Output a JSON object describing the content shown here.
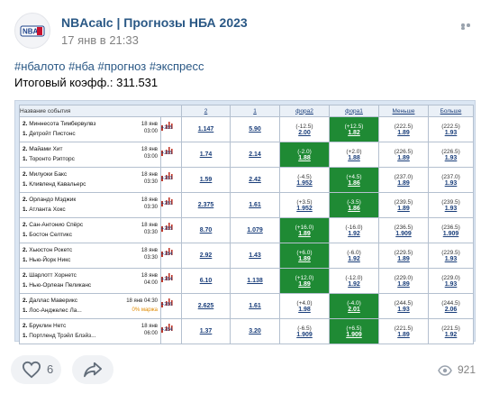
{
  "post": {
    "author": "NBAcalc | Прогнозы НБА 2023",
    "date": "17 янв в 21:33",
    "tags": "#нбалото #нба #прогноз #экспресс",
    "total": "Итоговый коэфф.: 311.531",
    "logo_text": "NBA",
    "likes": "6",
    "views": "921"
  },
  "table": {
    "headers": [
      "Название события",
      "2",
      "1",
      "фора2",
      "фора1",
      "Меньше",
      "Больше"
    ],
    "rows": [
      {
        "team1": "Миннесота Тимбервулвз",
        "team2": "Детройт Пистонс",
        "n1": "2.",
        "n2": "1.",
        "date": "18 янв",
        "time": "03:00",
        "more": "+285",
        "marja": "",
        "v2": "1.147",
        "v1": "5.90",
        "f2l": "(-12.5)",
        "f2o": "2.00",
        "f1l": "(+12.5)",
        "f1o": "1.82",
        "ml": "(222.5)",
        "mo": "1.89",
        "bl": "(222.5)",
        "bo": "1.93",
        "hl": "f1"
      },
      {
        "team1": "Майами Хит",
        "team2": "Торонто Рэпторс",
        "n1": "2.",
        "n2": "1.",
        "date": "18 янв",
        "time": "03:00",
        "more": "+285",
        "marja": "",
        "v2": "1.74",
        "v1": "2.14",
        "f2l": "(-2.0)",
        "f2o": "1.88",
        "f1l": "(+2.0)",
        "f1o": "1.88",
        "ml": "(226.5)",
        "mo": "1.89",
        "bl": "(226.5)",
        "bo": "1.93",
        "hl": "f2"
      },
      {
        "team1": "Милуоки Бакс",
        "team2": "Кливленд Кавальерс",
        "n1": "2.",
        "n2": "1.",
        "date": "18 янв",
        "time": "03:30",
        "more": "+283",
        "marja": "",
        "v2": "1.59",
        "v1": "2.42",
        "f2l": "(-4.5)",
        "f2o": "1.952",
        "f1l": "(+4.5)",
        "f1o": "1.86",
        "ml": "(237.0)",
        "mo": "1.89",
        "bl": "(237.0)",
        "bo": "1.93",
        "hl": "f1"
      },
      {
        "team1": "Орландо Мэджик",
        "team2": "Атланта Хокс",
        "n1": "2.",
        "n2": "1.",
        "date": "18 янв",
        "time": "03:30",
        "more": "+281",
        "marja": "",
        "v2": "2.375",
        "v1": "1.61",
        "f2l": "(+3.5)",
        "f2o": "1.952",
        "f1l": "(-3.5)",
        "f1o": "1.86",
        "ml": "(239.5)",
        "mo": "1.89",
        "bl": "(239.5)",
        "bo": "1.93",
        "hl": "f1"
      },
      {
        "team1": "Сан-Антонио Спёрс",
        "team2": "Бостон Селтикс",
        "n1": "2.",
        "n2": "1.",
        "date": "18 янв",
        "time": "03:30",
        "more": "+285",
        "marja": "",
        "v2": "8.70",
        "v1": "1.079",
        "f2l": "(+16.0)",
        "f2o": "1.89",
        "f1l": "(-16.0)",
        "f1o": "1.92",
        "ml": "(236.5)",
        "mo": "1.909",
        "bl": "(236.5)",
        "bo": "1.909",
        "hl": "f2"
      },
      {
        "team1": "Хьюстон Рокетс",
        "team2": "Нью-Йорк Никс",
        "n1": "2.",
        "n2": "1.",
        "date": "18 янв",
        "time": "03:30",
        "more": "+284",
        "marja": "",
        "v2": "2.92",
        "v1": "1.43",
        "f2l": "(+6.0)",
        "f2o": "1.89",
        "f1l": "(-6.0)",
        "f1o": "1.92",
        "ml": "(229.5)",
        "mo": "1.89",
        "bl": "(229.5)",
        "bo": "1.93",
        "hl": "f2"
      },
      {
        "team1": "Шарлотт Хорнетс",
        "team2": "Нью-Орлеан Пеликанс",
        "n1": "2.",
        "n2": "1.",
        "date": "18 янв",
        "time": "04:00",
        "more": "+284",
        "marja": "",
        "v2": "6.10",
        "v1": "1.138",
        "f2l": "(+12.0)",
        "f2o": "1.89",
        "f1l": "(-12.0)",
        "f1o": "1.92",
        "ml": "(229.0)",
        "mo": "1.89",
        "bl": "(229.0)",
        "bo": "1.93",
        "hl": "f2"
      },
      {
        "team1": "Даллас Маверикс",
        "team2": "Лос-Анджелес Ла...",
        "n1": "2.",
        "n2": "1.",
        "date": "18 янв 04:30",
        "time": "",
        "more": "+286",
        "marja": "0% маржа",
        "v2": "2.625",
        "v1": "1.61",
        "f2l": "(+4.0)",
        "f2o": "1.98",
        "f1l": "(-4.0)",
        "f1o": "2.01",
        "ml": "(244.5)",
        "mo": "1.93",
        "bl": "(244.5)",
        "bo": "2.06",
        "hl": "f1"
      },
      {
        "team1": "Бруклин Нетс",
        "team2": "Портленд Трэйл Блэйз...",
        "n1": "2.",
        "n2": "1.",
        "date": "18 янв",
        "time": "06:00",
        "more": "+284",
        "marja": "",
        "v2": "1.37",
        "v1": "3.20",
        "f2l": "(-6.5)",
        "f2o": "1.909",
        "f1l": "(+6.5)",
        "f1o": "1.909",
        "ml": "(221.5)",
        "mo": "1.89",
        "bl": "(221.5)",
        "bo": "1.92",
        "hl": "f1"
      }
    ]
  },
  "colors": {
    "link": "#2a5885",
    "highlight": "#1f8a34",
    "bars": "#c0392b"
  }
}
